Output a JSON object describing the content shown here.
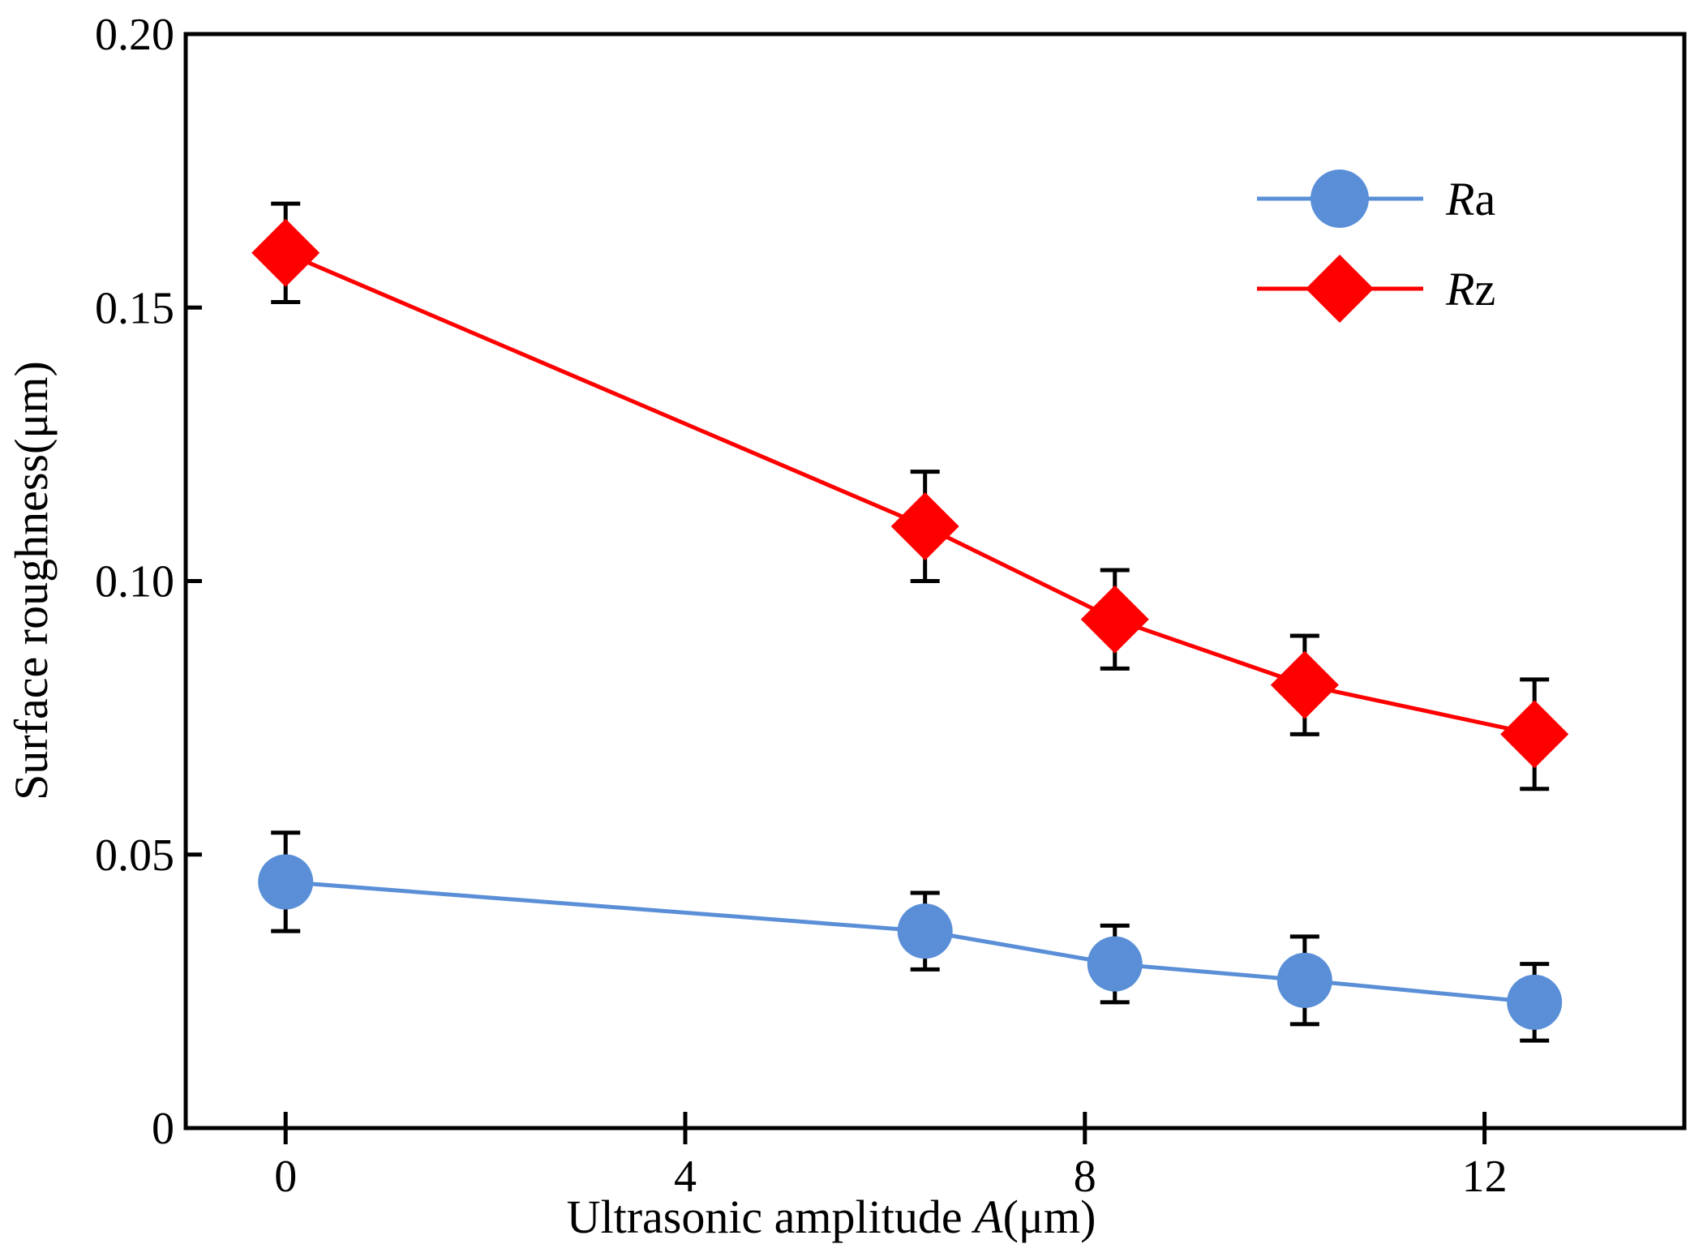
{
  "chart_data": {
    "type": "line",
    "title": "",
    "xlabel": {
      "prefix": "Ultrasonic amplitude ",
      "italic": "A",
      "suffix": "(μm)"
    },
    "ylabel": "Surface roughness(μm)",
    "xlim": [
      -1,
      14
    ],
    "ylim": [
      0,
      0.2
    ],
    "x_ticks": [
      0,
      4,
      8,
      12
    ],
    "x_tick_labels": [
      "0",
      "4",
      "8",
      "12"
    ],
    "y_ticks": [
      0,
      0.05,
      0.1,
      0.15,
      0.2
    ],
    "y_tick_labels": [
      "0",
      "0.05",
      "0.10",
      "0.15",
      "0.20"
    ],
    "legend_position": "top-right",
    "series": [
      {
        "name": "Ra",
        "legend_italic": "R",
        "legend_suffix": "a",
        "marker": "circle",
        "color": "#5a8fd8",
        "x": [
          0,
          6.4,
          8.3,
          10.2,
          12.5
        ],
        "y": [
          0.045,
          0.036,
          0.03,
          0.027,
          0.023
        ],
        "err": [
          0.009,
          0.007,
          0.007,
          0.008,
          0.007
        ]
      },
      {
        "name": "Rz",
        "legend_italic": "R",
        "legend_suffix": "z",
        "marker": "diamond",
        "color": "#ff0000",
        "x": [
          0,
          6.4,
          8.3,
          10.2,
          12.5
        ],
        "y": [
          0.16,
          0.11,
          0.093,
          0.081,
          0.072
        ],
        "err": [
          0.009,
          0.01,
          0.009,
          0.009,
          0.01
        ]
      }
    ]
  }
}
